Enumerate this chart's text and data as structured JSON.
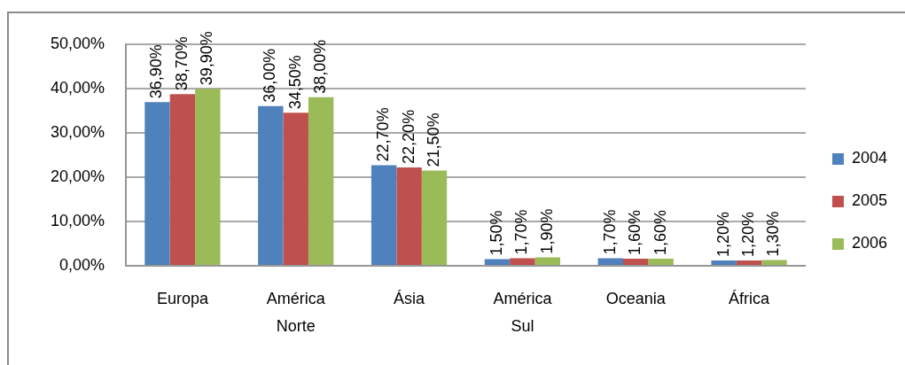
{
  "chart_data": {
    "type": "bar",
    "categories": [
      "Europa",
      "América Norte",
      "Ásia",
      "América Sul",
      "Oceania",
      "África"
    ],
    "series": [
      {
        "name": "2004",
        "color": "#4f81bd",
        "values": [
          36.9,
          36.0,
          22.7,
          1.5,
          1.7,
          1.2
        ],
        "value_labels": [
          "36,90%",
          "36,00%",
          "22,70%",
          "1,50%",
          "1,70%",
          "1,20%"
        ]
      },
      {
        "name": "2005",
        "color": "#c0504d",
        "values": [
          38.7,
          34.5,
          22.2,
          1.7,
          1.6,
          1.2
        ],
        "value_labels": [
          "38,70%",
          "34,50%",
          "22,20%",
          "1,70%",
          "1,60%",
          "1,20%"
        ]
      },
      {
        "name": "2006",
        "color": "#9bbb59",
        "values": [
          39.9,
          38.0,
          21.5,
          1.9,
          1.6,
          1.3
        ],
        "value_labels": [
          "39,90%",
          "38,00%",
          "21,50%",
          "1,90%",
          "1,60%",
          "1,30%"
        ]
      }
    ],
    "ylim": [
      0,
      50
    ],
    "yticks": [
      {
        "value": 0,
        "label": "0,00%"
      },
      {
        "value": 10,
        "label": "10,00%"
      },
      {
        "value": 20,
        "label": "20,00%"
      },
      {
        "value": 30,
        "label": "30,00%"
      },
      {
        "value": 40,
        "label": "40,00%"
      },
      {
        "value": 50,
        "label": "50,00%"
      }
    ],
    "grid": "y",
    "legend": "right"
  }
}
